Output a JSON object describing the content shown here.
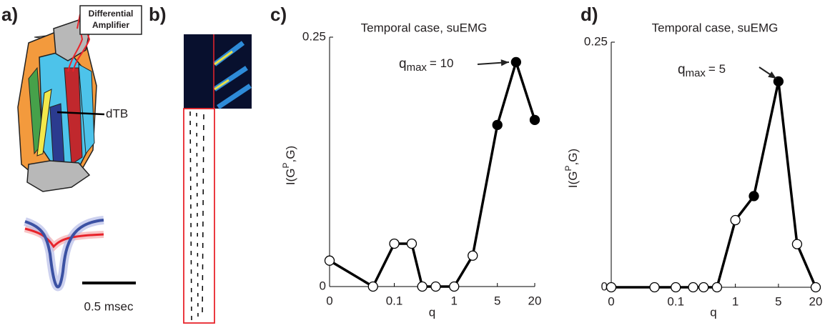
{
  "panel_a": {
    "label": "a)",
    "amplifier": [
      "Differential",
      "Amplifier"
    ],
    "muscle": "dTB",
    "scale": "0.5 msec"
  },
  "panel_b": {
    "label": "b)"
  },
  "chart_data": [
    {
      "type": "line",
      "label": "c)",
      "title": "Temporal case, suEMG",
      "xlabel": "q",
      "ylabel": {
        "base": "I(G",
        "sup": "P",
        "rest": ",G)"
      },
      "annotation": {
        "base": "q",
        "sub": "max",
        "text": "= 10"
      },
      "x": [
        0,
        0.04,
        0.1,
        0.2,
        0.3,
        0.5,
        1,
        2,
        5,
        10,
        20
      ],
      "series": [
        {
          "color": "#000000",
          "values": [
            0.026,
            0,
            0.043,
            0.043,
            0,
            0,
            0,
            0.031,
            0.162,
            0.225,
            0.167
          ],
          "marker_fill": [
            "#ffffff",
            "#ffffff",
            "#ffffff",
            "#ffffff",
            "#ffffff",
            "#ffffff",
            "#ffffff",
            "#ffffff",
            "#000000",
            "#000000",
            "#000000"
          ]
        }
      ],
      "xscale": "log",
      "xlim": [
        0,
        20
      ],
      "xticks": [
        0,
        0.1,
        1,
        5,
        20
      ],
      "ylim": [
        0,
        0.25
      ],
      "yticks": [
        0,
        0.25
      ]
    },
    {
      "type": "line",
      "label": "d)",
      "title": "Temporal case, suEMG",
      "xlabel": "q",
      "ylabel": {
        "base": "I(G",
        "sup": "P",
        "rest": ",G)"
      },
      "annotation": {
        "base": "q",
        "sub": "max",
        "text": "= 5"
      },
      "x": [
        0,
        0.04,
        0.1,
        0.2,
        0.3,
        0.5,
        1,
        2,
        5,
        10,
        20
      ],
      "series": [
        {
          "color": "#000000",
          "values": [
            0,
            0,
            0,
            0,
            0,
            0,
            0.0685,
            0.093,
            0.21,
            0.044,
            0
          ],
          "marker_fill": [
            "#ffffff",
            "#ffffff",
            "#ffffff",
            "#ffffff",
            "#ffffff",
            "#ffffff",
            "#ffffff",
            "#000000",
            "#000000",
            "#ffffff",
            "#ffffff"
          ]
        }
      ],
      "xscale": "log",
      "xlim": [
        0,
        20
      ],
      "xticks": [
        0,
        0.1,
        1,
        5,
        20
      ],
      "ylim": [
        0,
        0.25
      ],
      "yticks": [
        0,
        0.25
      ]
    }
  ]
}
